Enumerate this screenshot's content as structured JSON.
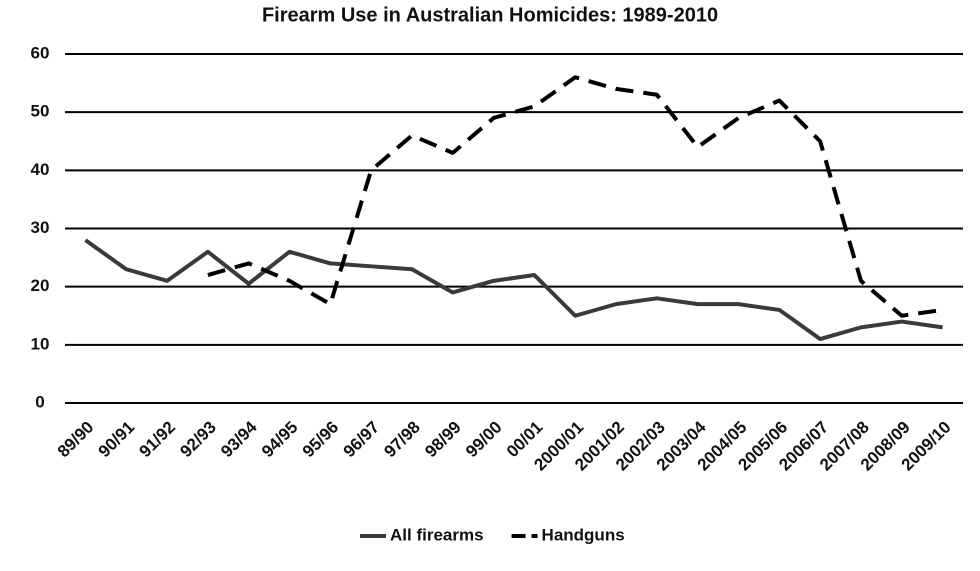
{
  "chart_data": {
    "type": "line",
    "title": "Firearm Use in Australian Homicides: 1989-2010",
    "categories": [
      "89/90",
      "90/91",
      "91/92",
      "92/93",
      "93/94",
      "94/95",
      "95/96",
      "96/97",
      "97/98",
      "98/99",
      "99/00",
      "00/01",
      "2000/01",
      "2001/02",
      "2002/03",
      "2003/04",
      "2004/05",
      "2005/06",
      "2006/07",
      "2007/08",
      "2008/09",
      "2009/10"
    ],
    "series": [
      {
        "name": "All firearms",
        "color": "#3a3a3a",
        "style": "solid",
        "values": [
          28,
          23,
          21,
          26,
          20.5,
          26,
          24,
          23.5,
          23,
          19,
          21,
          22,
          15,
          17,
          18,
          17,
          17,
          16,
          11,
          13,
          14,
          13
        ]
      },
      {
        "name": "Handguns",
        "color": "#000000",
        "style": "dashed",
        "values": [
          null,
          null,
          null,
          22,
          24,
          21,
          17,
          40,
          46,
          43,
          49,
          51,
          56,
          54,
          53,
          44,
          49,
          52,
          45,
          21,
          15,
          16
        ]
      }
    ],
    "ylim": [
      0,
      60
    ],
    "yticks": [
      0,
      10,
      20,
      30,
      40,
      50,
      60
    ],
    "grid": true,
    "legend": "bottom"
  }
}
